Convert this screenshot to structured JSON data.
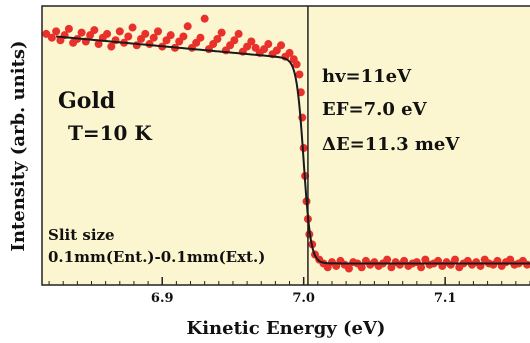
{
  "chart_data": {
    "type": "scatter",
    "xlabel": "Kinetic Energy (eV)",
    "ylabel": "Intensity (arb. units)",
    "xlim": [
      6.815,
      7.16
    ],
    "ylim": [
      0,
      1.1
    ],
    "x_ticks": [
      6.9,
      7.0,
      7.1
    ],
    "x_tick_labels": [
      "6.9",
      "7.0",
      "7.1"
    ],
    "grid": false,
    "colors": {
      "background": "#fbf5d0",
      "points": "#e8312b",
      "fit": "#1a1a1a",
      "frame": "#222222"
    },
    "fermi_marker_x": 7.003,
    "annotations": {
      "sample": "Gold",
      "temperature": "T=10 K",
      "photon": "hv=11eV",
      "fermi": "EF=7.0 eV",
      "resolution": "ΔE=11.3 meV",
      "slit_title": "Slit size",
      "slit_value": "0.1mm(Ent.)-0.1mm(Ext.)"
    },
    "fit": {
      "ef": 7.0,
      "width": 0.0025,
      "high_start": 0.985,
      "high_end": 0.89,
      "low_level": 0.085
    },
    "series": [
      {
        "values": [
          [
            6.818,
            0.99
          ],
          [
            6.822,
            0.975
          ],
          [
            6.825,
            1.0
          ],
          [
            6.828,
            0.965
          ],
          [
            6.831,
            0.985
          ],
          [
            6.834,
            1.01
          ],
          [
            6.837,
            0.955
          ],
          [
            6.84,
            0.97
          ],
          [
            6.843,
            0.995
          ],
          [
            6.846,
            0.96
          ],
          [
            6.849,
            0.985
          ],
          [
            6.852,
            1.005
          ],
          [
            6.855,
            0.95
          ],
          [
            6.858,
            0.975
          ],
          [
            6.861,
            0.99
          ],
          [
            6.864,
            0.94
          ],
          [
            6.867,
            0.965
          ],
          [
            6.87,
            1.0
          ],
          [
            6.873,
            0.955
          ],
          [
            6.876,
            0.98
          ],
          [
            6.879,
            1.015
          ],
          [
            6.882,
            0.945
          ],
          [
            6.885,
            0.97
          ],
          [
            6.888,
            0.99
          ],
          [
            6.891,
            0.95
          ],
          [
            6.894,
            0.975
          ],
          [
            6.897,
            1.0
          ],
          [
            6.9,
            0.94
          ],
          [
            6.903,
            0.965
          ],
          [
            6.906,
            0.985
          ],
          [
            6.909,
            0.935
          ],
          [
            6.912,
            0.96
          ],
          [
            6.915,
            0.98
          ],
          [
            6.918,
            1.02
          ],
          [
            6.921,
            0.935
          ],
          [
            6.924,
            0.955
          ],
          [
            6.927,
            0.975
          ],
          [
            6.93,
            1.05
          ],
          [
            6.933,
            0.93
          ],
          [
            6.936,
            0.95
          ],
          [
            6.939,
            0.97
          ],
          [
            6.942,
            0.995
          ],
          [
            6.945,
            0.925
          ],
          [
            6.948,
            0.945
          ],
          [
            6.951,
            0.965
          ],
          [
            6.954,
            0.99
          ],
          [
            6.957,
            0.92
          ],
          [
            6.96,
            0.94
          ],
          [
            6.963,
            0.96
          ],
          [
            6.966,
            0.935
          ],
          [
            6.969,
            0.915
          ],
          [
            6.972,
            0.93
          ],
          [
            6.975,
            0.95
          ],
          [
            6.978,
            0.91
          ],
          [
            6.981,
            0.925
          ],
          [
            6.984,
            0.945
          ],
          [
            6.987,
            0.9
          ],
          [
            6.99,
            0.915
          ],
          [
            6.993,
            0.89
          ],
          [
            6.995,
            0.87
          ],
          [
            6.997,
            0.83
          ],
          [
            6.998,
            0.76
          ],
          [
            6.999,
            0.66
          ],
          [
            7.0,
            0.54
          ],
          [
            7.001,
            0.43
          ],
          [
            7.002,
            0.33
          ],
          [
            7.003,
            0.26
          ],
          [
            7.004,
            0.2
          ],
          [
            7.006,
            0.16
          ],
          [
            7.008,
            0.12
          ],
          [
            7.011,
            0.1
          ],
          [
            7.014,
            0.085
          ],
          [
            7.017,
            0.07
          ],
          [
            7.02,
            0.09
          ],
          [
            7.023,
            0.075
          ],
          [
            7.026,
            0.095
          ],
          [
            7.029,
            0.08
          ],
          [
            7.032,
            0.065
          ],
          [
            7.035,
            0.09
          ],
          [
            7.038,
            0.085
          ],
          [
            7.041,
            0.07
          ],
          [
            7.044,
            0.095
          ],
          [
            7.047,
            0.08
          ],
          [
            7.05,
            0.09
          ],
          [
            7.053,
            0.075
          ],
          [
            7.056,
            0.085
          ],
          [
            7.059,
            0.1
          ],
          [
            7.062,
            0.07
          ],
          [
            7.065,
            0.09
          ],
          [
            7.068,
            0.08
          ],
          [
            7.071,
            0.095
          ],
          [
            7.074,
            0.075
          ],
          [
            7.077,
            0.085
          ],
          [
            7.08,
            0.09
          ],
          [
            7.083,
            0.07
          ],
          [
            7.086,
            0.1
          ],
          [
            7.089,
            0.08
          ],
          [
            7.092,
            0.085
          ],
          [
            7.095,
            0.095
          ],
          [
            7.098,
            0.075
          ],
          [
            7.101,
            0.09
          ],
          [
            7.104,
            0.08
          ],
          [
            7.107,
            0.1
          ],
          [
            7.11,
            0.07
          ],
          [
            7.113,
            0.085
          ],
          [
            7.116,
            0.095
          ],
          [
            7.119,
            0.08
          ],
          [
            7.122,
            0.09
          ],
          [
            7.125,
            0.075
          ],
          [
            7.128,
            0.1
          ],
          [
            7.131,
            0.085
          ],
          [
            7.134,
            0.08
          ],
          [
            7.137,
            0.095
          ],
          [
            7.14,
            0.075
          ],
          [
            7.143,
            0.09
          ],
          [
            7.146,
            0.1
          ],
          [
            7.149,
            0.08
          ],
          [
            7.152,
            0.085
          ],
          [
            7.155,
            0.095
          ],
          [
            7.158,
            0.08
          ]
        ]
      }
    ]
  }
}
